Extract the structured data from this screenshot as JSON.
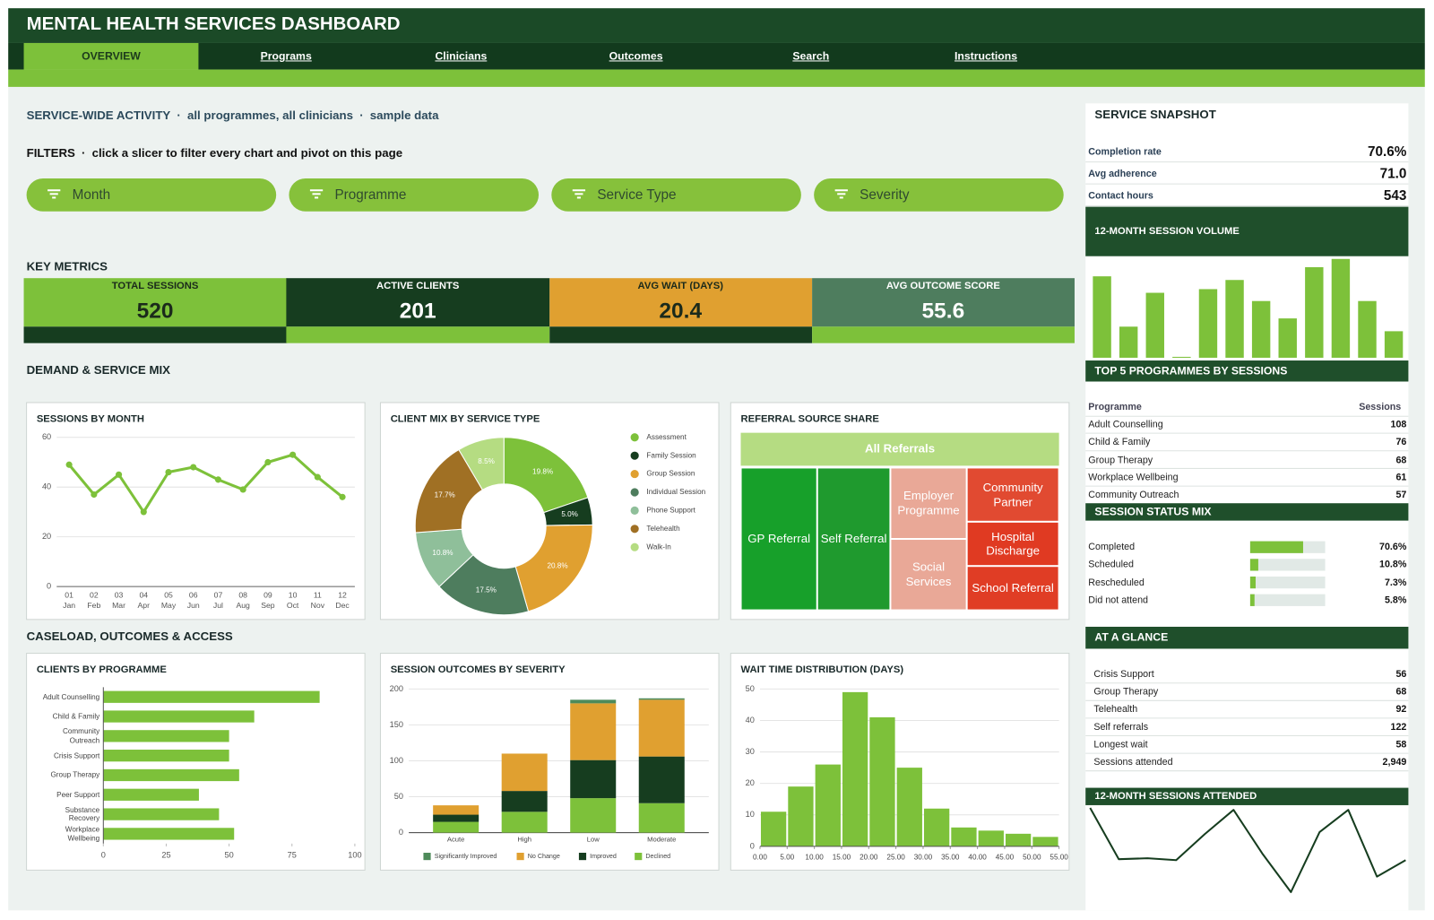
{
  "header": {
    "title": "MENTAL HEALTH SERVICES DASHBOARD"
  },
  "nav": {
    "tabs": [
      "OVERVIEW",
      "Programs",
      "Clinicians",
      "Outcomes",
      "Search",
      "Instructions"
    ],
    "active": 0
  },
  "activity": {
    "parts": [
      "SERVICE-WIDE ACTIVITY",
      "all programmes, all clinicians",
      "sample data"
    ],
    "separator": "·"
  },
  "filters": {
    "heading": "FILTERS",
    "separator": "·",
    "hint": "click a slicer to filter every chart and pivot on this page",
    "slicers": [
      "Month",
      "Programme",
      "Service Type",
      "Severity"
    ],
    "color": "#86c13b"
  },
  "key_metrics": {
    "heading": "KEY METRICS",
    "cards": [
      {
        "label": "TOTAL SESSIONS",
        "value": 520,
        "color": "#7dc13a",
        "strip_color": "#163d1f",
        "text_color": "#1b2a1b"
      },
      {
        "label": "ACTIVE CLIENTS",
        "value": 201,
        "color": "#163d1f",
        "strip_color": "#7dc13a",
        "text_color": "#ffffff"
      },
      {
        "label": "AVG WAIT (DAYS)",
        "value": 20.4,
        "color": "#e0a030",
        "strip_color": "#163d1f",
        "text_color": "#1b2a1b"
      },
      {
        "label": "AVG OUTCOME SCORE",
        "value": 55.6,
        "color": "#4e7d5e",
        "strip_color": "#7dc13a",
        "text_color": "#ffffff"
      }
    ]
  },
  "sections": [
    "DEMAND & SERVICE MIX",
    "CASELOAD, OUTCOMES & ACCESS"
  ],
  "chart_data": [
    {
      "type": "line",
      "title": "SESSIONS BY MONTH",
      "categories": [
        "01",
        "02",
        "03",
        "04",
        "05",
        "06",
        "07",
        "08",
        "09",
        "10",
        "11",
        "12"
      ],
      "category_sublabels": [
        "Jan",
        "Feb",
        "Mar",
        "Apr",
        "May",
        "Jun",
        "Jul",
        "Aug",
        "Sep",
        "Oct",
        "Nov",
        "Dec"
      ],
      "values": [
        49,
        37,
        45,
        30,
        46,
        48,
        43,
        39,
        50,
        53,
        44,
        36
      ],
      "ylim": [
        0,
        60
      ],
      "yticks": [
        0,
        20,
        40,
        60
      ],
      "grid": true,
      "color": "#7dc13a"
    },
    {
      "type": "pie",
      "title": "CLIENT MIX BY SERVICE TYPE",
      "categories": [
        "Assessment",
        "Family Session",
        "Group Session",
        "Individual Session",
        "Phone Support",
        "Telehealth",
        "Walk-In"
      ],
      "values": [
        19.8,
        5.0,
        20.8,
        17.5,
        10.8,
        17.7,
        8.5
      ],
      "value_labels": [
        "19.8%",
        "5.0%",
        "20.8%",
        "17.5%",
        "10.8%",
        "17.7%",
        "8.5%"
      ],
      "colors": [
        "#7dc13a",
        "#163d1f",
        "#e0a030",
        "#4e7d5e",
        "#8fbf9a",
        "#a07024",
        "#b5dc82"
      ]
    },
    {
      "type": "treemap",
      "title": "REFERRAL SOURCE SHARE",
      "root": "All Referrals",
      "categories": [
        "GP Referral",
        "Self Referral",
        "Employer Programme",
        "Social Services",
        "Community Partner",
        "Hospital Discharge",
        "School Referral"
      ],
      "values": [
        24,
        23,
        12,
        12,
        11,
        9,
        9
      ],
      "colors": [
        "#17a02a",
        "#1f9a2e",
        "#e9a897",
        "#e9a897",
        "#e14a31",
        "#e03a22",
        "#e03d25"
      ],
      "root_color": "#b5dc82"
    },
    {
      "type": "bar",
      "title": "CLIENTS BY PROGRAMME",
      "horizontal": true,
      "categories": [
        "Adult Counselling",
        "Child & Family",
        "Community Outreach",
        "Crisis Support",
        "Group Therapy",
        "Peer Support",
        "Substance Recovery",
        "Workplace Wellbeing"
      ],
      "values": [
        86,
        60,
        50,
        50,
        54,
        38,
        46,
        52
      ],
      "xlim": [
        0,
        100
      ],
      "xticks": [
        0,
        25,
        50,
        75,
        100
      ],
      "color": "#7dc13a"
    },
    {
      "type": "bar",
      "title": "SESSION OUTCOMES BY SEVERITY",
      "stacked": true,
      "categories": [
        "Acute",
        "High",
        "Low",
        "Moderate"
      ],
      "series": [
        {
          "name": "Significantly Improved",
          "color": "#4e8b5a",
          "values": [
            0,
            0,
            5,
            2
          ]
        },
        {
          "name": "No Change",
          "color": "#e0a030",
          "values": [
            13,
            52,
            79,
            79
          ]
        },
        {
          "name": "Improved",
          "color": "#163d1f",
          "values": [
            10,
            29,
            53,
            65
          ]
        },
        {
          "name": "Declined",
          "color": "#7dc13a",
          "values": [
            15,
            29,
            48,
            41
          ]
        }
      ],
      "ylim": [
        0,
        200
      ],
      "yticks": [
        0,
        50,
        100,
        150,
        200
      ],
      "grid": true
    },
    {
      "type": "histogram",
      "title": "WAIT TIME DISTRIBUTION (DAYS)",
      "bins": [
        0,
        5,
        10,
        15,
        20,
        25,
        30,
        35,
        40,
        45,
        50,
        55
      ],
      "values": [
        11,
        19,
        26,
        49,
        41,
        25,
        12,
        6,
        5,
        4,
        3
      ],
      "xlim": [
        0,
        55
      ],
      "xticks": [
        {
          "value": 0,
          "label": "0.00"
        },
        {
          "value": 5,
          "label": "5.00"
        },
        {
          "value": 10,
          "label": "10.00"
        },
        {
          "value": 15,
          "label": "15.00"
        },
        {
          "value": 20,
          "label": "20.00"
        },
        {
          "value": 25,
          "label": "25.00"
        },
        {
          "value": 30,
          "label": "30.00"
        },
        {
          "value": 35,
          "label": "35.00"
        },
        {
          "value": 40,
          "label": "40.00"
        },
        {
          "value": 45,
          "label": "45.00"
        },
        {
          "value": 50,
          "label": "50.00"
        },
        {
          "value": 55,
          "label": "55.00"
        }
      ],
      "ylim": [
        0,
        50
      ],
      "yticks": [
        0,
        10,
        20,
        30,
        40,
        50
      ],
      "grid": true,
      "color": "#7dc13a"
    },
    {
      "type": "bar",
      "title": "12-MONTH SESSION VOLUME",
      "values": [
        89,
        34,
        71,
        1,
        75,
        85,
        62,
        43,
        99,
        108,
        62,
        29
      ],
      "color": "#7dc13a"
    },
    {
      "type": "line",
      "title": "12-MONTH SESSIONS ATTENDED",
      "values": [
        90,
        37,
        38,
        36,
        63,
        88,
        43,
        3,
        65,
        88,
        19,
        36
      ],
      "color": "#163d1f"
    }
  ],
  "snapshot": {
    "title": "SERVICE SNAPSHOT",
    "rows": [
      [
        "Completion rate",
        "70.6%"
      ],
      [
        "Avg adherence",
        "71.0"
      ],
      [
        "Contact hours",
        "543"
      ]
    ]
  },
  "top_programmes": {
    "title": "TOP 5 PROGRAMMES BY SESSIONS",
    "columns": [
      "Programme",
      "Sessions"
    ],
    "rows": [
      [
        "Adult Counselling",
        "108"
      ],
      [
        "Child & Family",
        "76"
      ],
      [
        "Group Therapy",
        "68"
      ],
      [
        "Workplace Wellbeing",
        "61"
      ],
      [
        "Community Outreach",
        "57"
      ]
    ]
  },
  "status_mix": {
    "title": "SESSION STATUS MIX",
    "categories": [
      "Completed",
      "Scheduled",
      "Rescheduled",
      "Did not attend"
    ],
    "values": [
      70.6,
      10.8,
      7.3,
      5.8
    ],
    "value_labels": [
      "70.6%",
      "10.8%",
      "7.3%",
      "5.8%"
    ],
    "xlim": [
      0,
      100
    ],
    "color": "#7dc13a",
    "track_color": "#e1e9e6"
  },
  "at_a_glance": {
    "title": "AT A GLANCE",
    "rows": [
      [
        "Crisis Support",
        "56"
      ],
      [
        "Group Therapy",
        "68"
      ],
      [
        "Telehealth",
        "92"
      ],
      [
        "Self referrals",
        "122"
      ],
      [
        "Longest wait",
        "58"
      ],
      [
        "Sessions attended",
        "2,949"
      ]
    ]
  }
}
